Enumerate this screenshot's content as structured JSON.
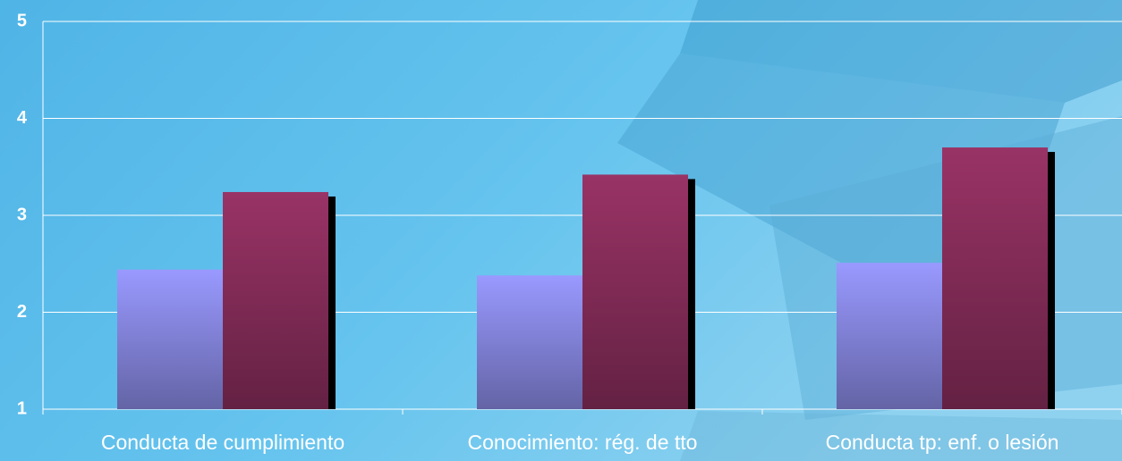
{
  "chart_data": {
    "type": "bar",
    "categories": [
      "Conducta de cumplimiento",
      "Conocimiento: rég. de tto",
      "Conducta tp: enf. o lesión"
    ],
    "series": [
      {
        "color": "#9999ff",
        "values": [
          2.44,
          2.38,
          2.51
        ]
      },
      {
        "color": "#993366",
        "values": [
          3.24,
          3.42,
          3.7
        ]
      }
    ],
    "ylim": [
      1,
      5
    ],
    "yticks": [
      1,
      2,
      3,
      4,
      5
    ],
    "grid": true
  }
}
